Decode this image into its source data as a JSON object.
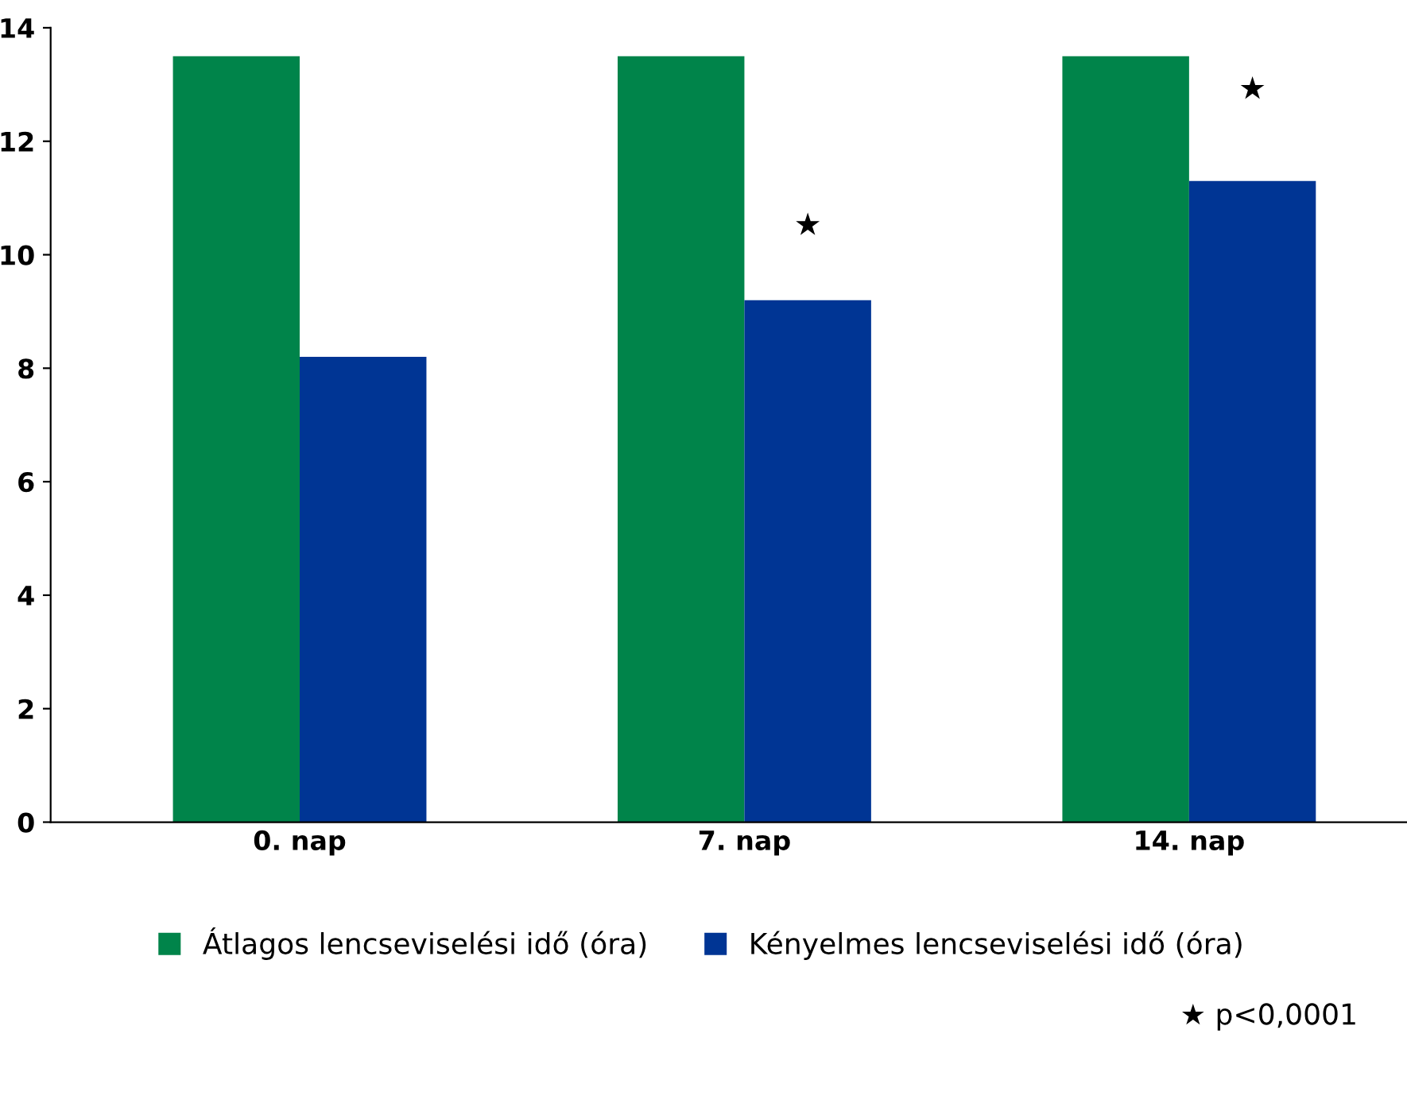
{
  "chart_data": {
    "type": "bar",
    "categories": [
      "0. nap",
      "7. nap",
      "14. nap"
    ],
    "series": [
      {
        "name": "Átlagos lencseviselési idő (óra)",
        "color": "#00844a",
        "values": [
          13.5,
          13.5,
          13.5
        ]
      },
      {
        "name": "Kényelmes lencseviselési idő (óra)",
        "color": "#003594",
        "values": [
          8.2,
          9.2,
          11.3
        ]
      }
    ],
    "ylim": [
      0,
      14
    ],
    "yticks": [
      0,
      2,
      4,
      6,
      8,
      10,
      12,
      14
    ],
    "grid": false,
    "legend": "bottom",
    "annotations": [
      {
        "text": "★",
        "x": "7. nap",
        "y": 10.5
      },
      {
        "text": "★",
        "x": "14. nap",
        "y": 12.9
      },
      "★ p<0,0001"
    ]
  }
}
